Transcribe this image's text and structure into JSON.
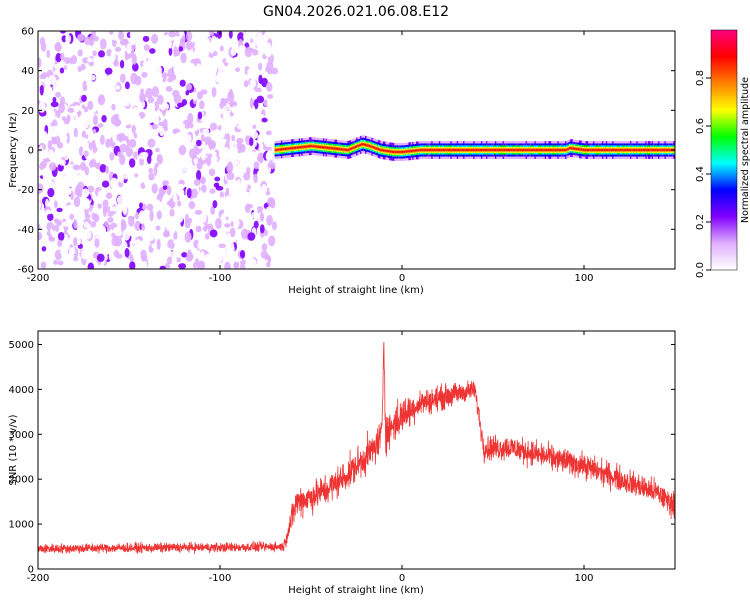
{
  "figure": {
    "title": "GN04.2026.021.06.08.E12"
  },
  "chart_data": [
    {
      "type": "heatmap",
      "xlabel": "Height of straight line (km)",
      "ylabel": "Frequency (Hz)",
      "xlim": [
        -200,
        150
      ],
      "ylim": [
        -60,
        60
      ],
      "xticks": [
        -200,
        -100,
        0,
        100
      ],
      "yticks": [
        -60,
        -40,
        -20,
        0,
        20,
        40,
        60
      ],
      "colorbar": {
        "label": "Normalized spectral amplitude",
        "range": [
          0,
          1
        ],
        "ticks": [
          "0.0",
          "0.2",
          "0.4",
          "0.6",
          "0.8"
        ],
        "colors": [
          "#ffffff",
          "#e0b0ff",
          "#8000ff",
          "#0000ff",
          "#00ffff",
          "#00ff00",
          "#ffff00",
          "#ff8000",
          "#ff0000",
          "#ff0080"
        ]
      },
      "regions": [
        {
          "x_range": [
            -200,
            -70
          ],
          "description_level": "broadband noise, amplitude 0.0–0.15"
        },
        {
          "x_range": [
            -70,
            150
          ],
          "frequency_band": [
            -4,
            4
          ],
          "peak_amplitude": 0.9
        }
      ],
      "ridge": {
        "x": [
          -70,
          -60,
          -50,
          -40,
          -30,
          -22,
          -18,
          -12,
          -5,
          0,
          10,
          40,
          70,
          90,
          92,
          100,
          120,
          150
        ],
        "center": [
          0,
          1,
          2,
          1,
          0,
          3,
          2,
          0,
          -1,
          -1,
          0,
          0,
          0,
          0,
          1,
          0,
          0,
          0
        ]
      }
    },
    {
      "type": "line",
      "xlabel": "Height of straight line (km)",
      "ylabel": "SNR (10 * v/v)",
      "xlim": [
        -200,
        150
      ],
      "ylim": [
        0,
        5300
      ],
      "xticks": [
        -200,
        -100,
        0,
        100
      ],
      "yticks": [
        0,
        1000,
        2000,
        3000,
        4000,
        5000
      ],
      "color": "#ee3333",
      "series": [
        {
          "x": [
            -200,
            -180,
            -160,
            -140,
            -120,
            -100,
            -80,
            -65,
            -60,
            -58,
            -50,
            -40,
            -30,
            -20,
            -15,
            -11,
            -10,
            -9,
            -5,
            0,
            10,
            20,
            30,
            40,
            45,
            60,
            80,
            100,
            120,
            140,
            150
          ],
          "mean": [
            450,
            460,
            470,
            470,
            480,
            480,
            490,
            500,
            1200,
            1500,
            1600,
            1800,
            2100,
            2500,
            2700,
            3000,
            5200,
            3000,
            3200,
            3400,
            3700,
            3800,
            3900,
            4000,
            2700,
            2700,
            2500,
            2300,
            2000,
            1700,
            1400
          ],
          "noise_amplitude": [
            150,
            150,
            150,
            150,
            150,
            150,
            150,
            150,
            450,
            500,
            500,
            500,
            500,
            550,
            550,
            600,
            500,
            600,
            600,
            600,
            400,
            400,
            350,
            300,
            400,
            400,
            400,
            400,
            400,
            400,
            400
          ]
        }
      ]
    }
  ]
}
